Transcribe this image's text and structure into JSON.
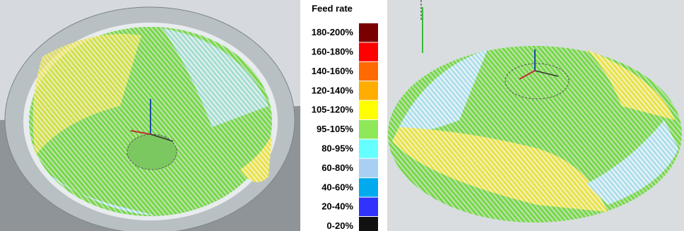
{
  "legend": {
    "title": "Feed rate",
    "entries": [
      {
        "label": "180-200%",
        "color": "#7a0000"
      },
      {
        "label": "160-180%",
        "color": "#ff0000"
      },
      {
        "label": "140-160%",
        "color": "#ff6a00"
      },
      {
        "label": "120-140%",
        "color": "#ffad00"
      },
      {
        "label": "105-120%",
        "color": "#ffff00"
      },
      {
        "label": "95-105%",
        "color": "#8fe85a"
      },
      {
        "label": "80-95%",
        "color": "#66ffff"
      },
      {
        "label": "60-80%",
        "color": "#a8d0f5"
      },
      {
        "label": "40-60%",
        "color": "#00aaee"
      },
      {
        "label": "20-40%",
        "color": "#3232ff"
      },
      {
        "label": "0-20%",
        "color": "#111111"
      }
    ]
  }
}
